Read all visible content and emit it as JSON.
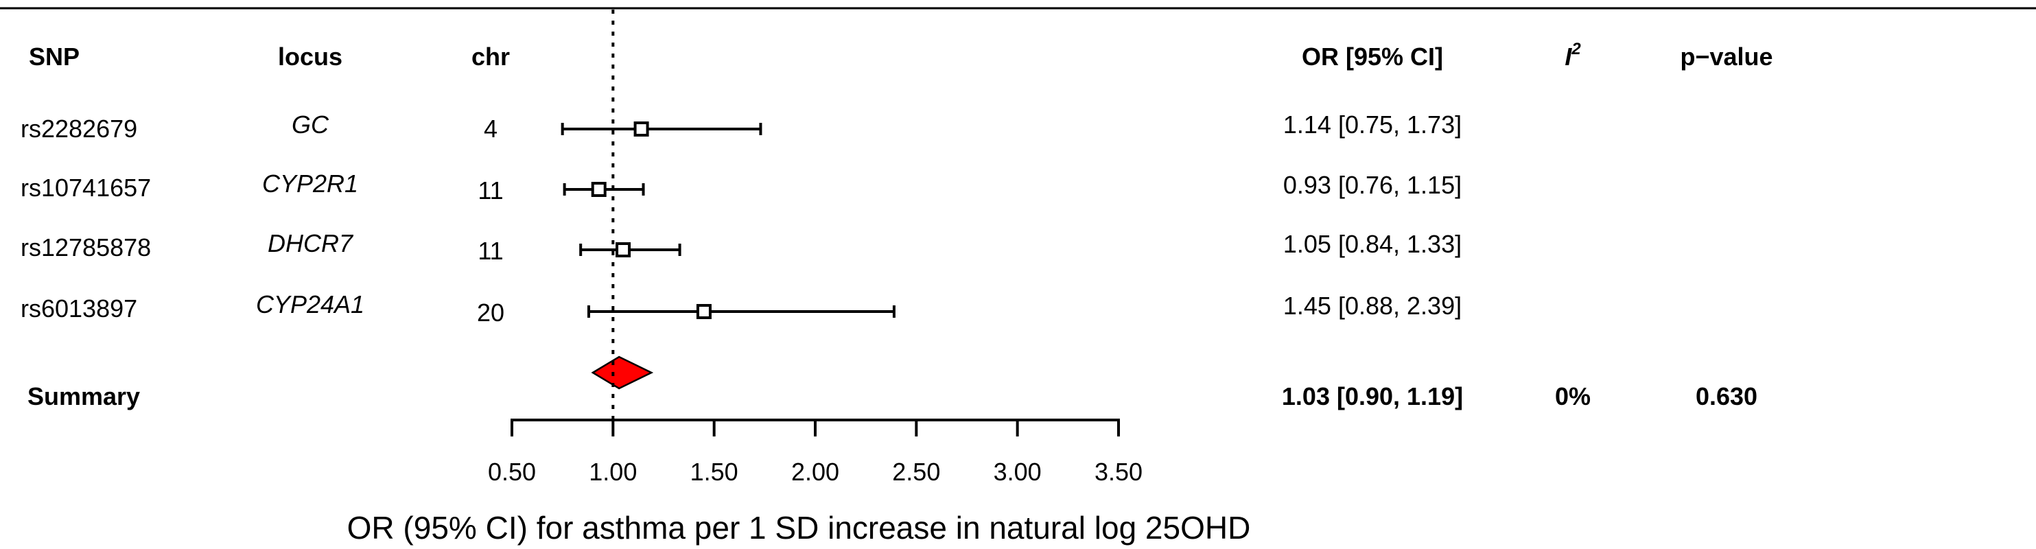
{
  "chart_data": {
    "type": "forest",
    "columns": {
      "snp": "SNP",
      "locus": "locus",
      "chr": "chr",
      "or_ci": "OR [95% CI]",
      "i2_letter": "I",
      "i2_sup": "2",
      "pvalue": "p−value"
    },
    "rows": [
      {
        "snp": "rs2282679",
        "locus": "GC",
        "chr": "4",
        "or": 1.14,
        "lo": 0.75,
        "hi": 1.73,
        "or_ci": "1.14 [0.75, 1.73]"
      },
      {
        "snp": "rs10741657",
        "locus": "CYP2R1",
        "chr": "11",
        "or": 0.93,
        "lo": 0.76,
        "hi": 1.15,
        "or_ci": "0.93 [0.76, 1.15]"
      },
      {
        "snp": "rs12785878",
        "locus": "DHCR7",
        "chr": "11",
        "or": 1.05,
        "lo": 0.84,
        "hi": 1.33,
        "or_ci": "1.05 [0.84, 1.33]"
      },
      {
        "snp": "rs6013897",
        "locus": "CYP24A1",
        "chr": "20",
        "or": 1.45,
        "lo": 0.88,
        "hi": 2.39,
        "or_ci": "1.45 [0.88, 2.39]"
      }
    ],
    "summary": {
      "label": "Summary",
      "or": 1.03,
      "lo": 0.9,
      "hi": 1.19,
      "or_ci": "1.03 [0.90, 1.19]",
      "i2": "0%",
      "pvalue": "0.630",
      "color": "#ff0000"
    },
    "reference_line": 1.0,
    "xlim": [
      0.5,
      3.5
    ],
    "xticks": [
      0.5,
      1.0,
      1.5,
      2.0,
      2.5,
      3.0,
      3.5
    ],
    "xtick_labels": [
      "0.50",
      "1.00",
      "1.50",
      "2.00",
      "2.50",
      "3.00",
      "3.50"
    ],
    "xlabel": "OR (95% CI) for asthma per 1 SD increase in natural log 25OHD"
  }
}
